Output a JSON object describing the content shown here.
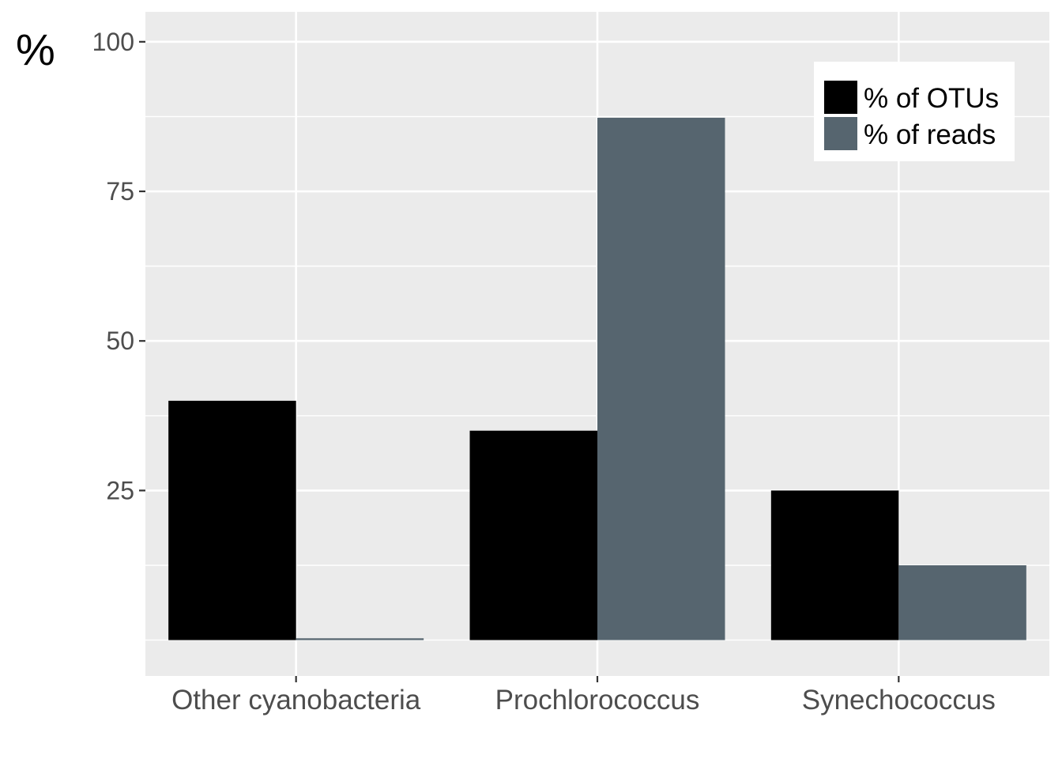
{
  "chart_data": {
    "type": "bar",
    "ylabel": "%",
    "xlabel": "",
    "categories": [
      "Other cyanobacteria",
      "Prochlorococcus",
      "Synechococcus"
    ],
    "series": [
      {
        "name": "% of OTUs",
        "color": "#000000",
        "values": [
          40,
          35,
          25
        ]
      },
      {
        "name": "% of reads",
        "color": "#56656f",
        "values": [
          0.3,
          87.3,
          12.5
        ]
      }
    ],
    "ylim": [
      -6,
      105
    ],
    "yticks": [
      "25",
      "50",
      "75",
      "100"
    ],
    "grid": true,
    "legend_position": "top-right",
    "panel_background": "#ebebeb"
  }
}
